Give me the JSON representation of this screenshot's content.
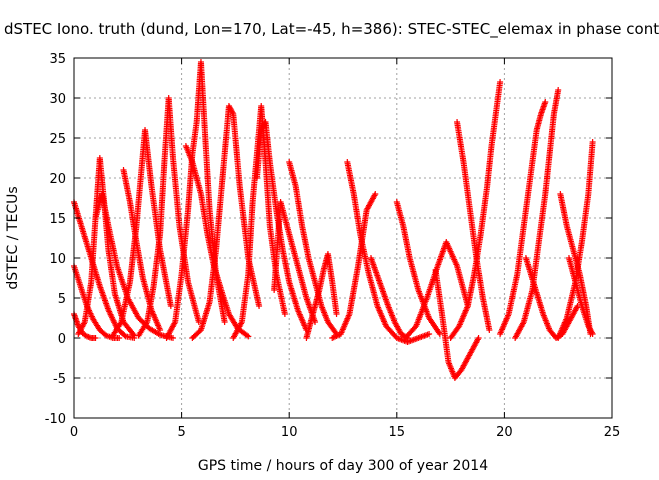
{
  "chart_data": {
    "type": "scatter",
    "title": "dSTEC Iono. truth (dund, Lon=170, Lat=-45, h=386): STEC-STEC_elemax in phase cont",
    "xlabel": "GPS time / hours of day 300 of year 2014",
    "ylabel": "dSTEC  / TECUs",
    "xlim": [
      0,
      25
    ],
    "ylim": [
      -10,
      35
    ],
    "xticks": [
      0,
      5,
      10,
      15,
      20,
      25
    ],
    "yticks": [
      -10,
      -5,
      0,
      5,
      10,
      15,
      20,
      25,
      30,
      35
    ],
    "grid": true,
    "legend": "none",
    "marker": "plus",
    "color": "#ff0000",
    "series": [
      {
        "x": [
          0.0,
          0.4,
          0.8,
          1.2,
          1.6,
          2.0,
          2.4,
          2.8
        ],
        "y": [
          17.0,
          13.5,
          10.0,
          6.5,
          3.5,
          1.2,
          0.2,
          0.0
        ]
      },
      {
        "x": [
          0.0,
          0.3,
          0.6,
          0.9,
          1.2,
          1.5,
          1.8,
          2.1
        ],
        "y": [
          9.0,
          6.5,
          4.0,
          2.3,
          1.0,
          0.3,
          0.0,
          0.0
        ]
      },
      {
        "x": [
          0.0,
          0.2,
          0.4,
          0.6,
          0.8,
          1.0
        ],
        "y": [
          3.0,
          1.5,
          0.6,
          0.2,
          0.0,
          0.0
        ]
      },
      {
        "x": [
          0.2,
          0.5,
          0.8,
          1.0,
          1.2,
          1.4,
          1.6,
          1.9,
          2.3,
          2.8
        ],
        "y": [
          0.5,
          2.0,
          7.0,
          15.0,
          22.5,
          17.0,
          11.0,
          5.5,
          2.0,
          0.3
        ]
      },
      {
        "x": [
          1.0,
          1.3,
          1.6,
          2.0,
          2.5,
          3.0,
          3.5,
          4.0,
          4.6
        ],
        "y": [
          15.0,
          18.0,
          14.0,
          9.0,
          5.0,
          2.5,
          1.2,
          0.4,
          0.0
        ]
      },
      {
        "x": [
          2.3,
          2.6,
          2.9,
          3.2,
          3.6,
          4.0
        ],
        "y": [
          21.0,
          17.0,
          12.0,
          7.5,
          3.5,
          1.0
        ]
      },
      {
        "x": [
          1.8,
          2.2,
          2.6,
          2.9,
          3.1,
          3.3,
          3.6,
          4.0,
          4.5
        ],
        "y": [
          0.3,
          2.0,
          7.0,
          14.0,
          20.0,
          26.0,
          19.0,
          11.0,
          4.0
        ]
      },
      {
        "x": [
          3.0,
          3.4,
          3.7,
          4.0,
          4.2,
          4.4,
          4.6,
          4.9,
          5.3,
          5.8
        ],
        "y": [
          0.3,
          2.0,
          6.5,
          13.0,
          22.0,
          30.0,
          22.5,
          14.0,
          7.0,
          2.0
        ]
      },
      {
        "x": [
          4.3,
          4.7,
          5.0,
          5.3,
          5.5,
          5.7,
          5.9,
          6.1,
          6.3,
          6.6,
          7.0
        ],
        "y": [
          0.0,
          2.0,
          8.0,
          16.0,
          23.0,
          27.0,
          34.5,
          25.0,
          16.0,
          8.0,
          2.0
        ]
      },
      {
        "x": [
          5.2,
          5.5,
          5.9,
          6.2,
          6.5,
          6.9,
          7.2,
          7.6,
          8.1
        ],
        "y": [
          24.0,
          22.0,
          18.0,
          13.0,
          9.0,
          5.5,
          3.0,
          1.2,
          0.2
        ]
      },
      {
        "x": [
          5.5,
          5.9,
          6.3,
          6.6,
          6.9,
          7.2,
          7.4,
          7.7,
          8.1,
          8.6
        ],
        "y": [
          0.0,
          1.0,
          4.5,
          11.0,
          20.0,
          29.0,
          28.0,
          19.0,
          10.0,
          4.0
        ]
      },
      {
        "x": [
          7.4,
          7.8,
          8.1,
          8.3,
          8.5,
          8.7,
          8.9,
          9.1,
          9.4,
          9.8
        ],
        "y": [
          0.0,
          2.0,
          8.0,
          17.0,
          23.0,
          29.0,
          22.0,
          14.0,
          8.0,
          3.0
        ]
      },
      {
        "x": [
          8.5,
          8.7,
          8.9,
          9.1,
          9.4,
          9.7,
          10.0,
          10.4,
          10.8
        ],
        "y": [
          20.0,
          26.0,
          27.0,
          22.0,
          16.0,
          11.0,
          7.0,
          3.5,
          1.0
        ]
      },
      {
        "x": [
          9.3,
          9.6,
          9.9,
          10.2,
          10.5,
          10.8,
          11.2
        ],
        "y": [
          6.0,
          17.0,
          14.0,
          11.0,
          8.0,
          5.0,
          2.0
        ]
      },
      {
        "x": [
          10.0,
          10.3,
          10.6,
          10.9,
          11.2,
          11.5,
          11.8,
          12.2
        ],
        "y": [
          22.0,
          19.0,
          14.0,
          10.0,
          7.0,
          4.0,
          2.0,
          0.5
        ]
      },
      {
        "x": [
          10.8,
          11.0,
          11.2,
          11.4,
          11.6,
          11.8,
          12.0,
          12.2
        ],
        "y": [
          0.0,
          2.0,
          4.0,
          6.0,
          8.5,
          10.5,
          7.0,
          3.0
        ]
      },
      {
        "x": [
          12.0,
          12.4,
          12.8,
          13.2,
          13.6,
          14.0
        ],
        "y": [
          0.0,
          0.5,
          3.0,
          9.0,
          16.0,
          18.0
        ]
      },
      {
        "x": [
          12.7,
          13.0,
          13.3,
          13.7,
          14.1,
          14.5,
          15.0,
          15.5,
          16.0,
          16.5
        ],
        "y": [
          22.0,
          18.0,
          13.0,
          8.0,
          4.0,
          1.5,
          0.0,
          -0.5,
          0.0,
          0.5
        ]
      },
      {
        "x": [
          13.8,
          14.2,
          14.6,
          14.9,
          15.2,
          15.5
        ],
        "y": [
          10.0,
          7.0,
          4.0,
          2.0,
          0.5,
          0.0
        ]
      },
      {
        "x": [
          15.0,
          15.3,
          15.6,
          16.0,
          16.5,
          17.0
        ],
        "y": [
          17.0,
          14.0,
          10.0,
          6.0,
          2.5,
          0.5
        ]
      },
      {
        "x": [
          15.4,
          15.9,
          16.4,
          16.9,
          17.3,
          17.8,
          18.3
        ],
        "y": [
          0.0,
          1.5,
          5.0,
          9.0,
          12.0,
          9.0,
          4.0
        ]
      },
      {
        "x": [
          16.8,
          17.1,
          17.4,
          17.7,
          18.0,
          18.4,
          18.8
        ],
        "y": [
          8.5,
          3.0,
          -3.0,
          -5.0,
          -4.0,
          -2.0,
          0.0
        ]
      },
      {
        "x": [
          17.5,
          17.9,
          18.3,
          18.6,
          18.9,
          19.2,
          19.4,
          19.6,
          19.8
        ],
        "y": [
          0.0,
          1.5,
          4.0,
          8.0,
          13.0,
          19.0,
          24.0,
          28.0,
          32.0
        ]
      },
      {
        "x": [
          17.8,
          18.1,
          18.4,
          18.7,
          19.0,
          19.3
        ],
        "y": [
          27.0,
          22.0,
          16.0,
          10.0,
          5.0,
          1.0
        ]
      },
      {
        "x": [
          19.8,
          20.2,
          20.6,
          20.9,
          21.1,
          21.3,
          21.5,
          21.7,
          21.9
        ],
        "y": [
          0.5,
          3.0,
          8.0,
          14.0,
          18.0,
          22.0,
          26.0,
          28.0,
          29.5
        ]
      },
      {
        "x": [
          20.5,
          20.9,
          21.3,
          21.6,
          21.9,
          22.1,
          22.3,
          22.5
        ],
        "y": [
          0.0,
          2.0,
          6.0,
          12.0,
          18.0,
          23.0,
          28.0,
          31.0
        ]
      },
      {
        "x": [
          21.0,
          21.4,
          21.8,
          22.1,
          22.4,
          22.7,
          23.0,
          23.4
        ],
        "y": [
          10.0,
          6.5,
          3.0,
          1.0,
          0.0,
          0.5,
          2.0,
          4.0
        ]
      },
      {
        "x": [
          22.6,
          22.9,
          23.2,
          23.5,
          23.8,
          24.0
        ],
        "y": [
          18.0,
          14.0,
          11.0,
          8.0,
          4.0,
          0.5
        ]
      },
      {
        "x": [
          22.5,
          22.9,
          23.3,
          23.6,
          23.9,
          24.1
        ],
        "y": [
          0.0,
          2.5,
          7.0,
          12.0,
          18.0,
          24.5
        ]
      },
      {
        "x": [
          23.0,
          23.3,
          23.6,
          23.9,
          24.1
        ],
        "y": [
          10.0,
          7.0,
          4.0,
          1.5,
          0.5
        ]
      }
    ]
  }
}
